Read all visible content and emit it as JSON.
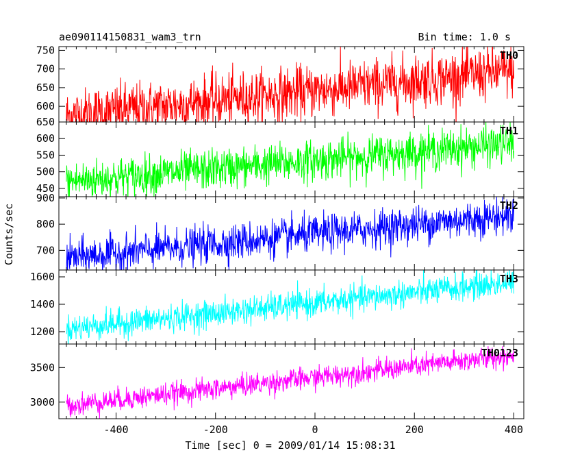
{
  "chart_data": {
    "type": "line",
    "title": "ae090114150831_wam3_trn",
    "bin_time_label": "Bin time: 1.0 s",
    "xlabel": "Time [sec] 0 = 2009/01/14 15:08:31",
    "ylabel": "Counts/sec",
    "xlim": [
      -515,
      420
    ],
    "x_ticks": [
      -400,
      -200,
      0,
      200,
      400
    ],
    "grid": false,
    "panels": [
      {
        "name": "TH0",
        "color": "#ff0000",
        "ylim": [
          558,
          760
        ],
        "y_ticks": [
          600,
          650,
          700,
          750
        ],
        "trend": {
          "x": [
            -500,
            400
          ],
          "y": [
            575,
            695
          ]
        },
        "noise": 35
      },
      {
        "name": "TH1",
        "color": "#00ff00",
        "ylim": [
          425,
          650
        ],
        "y_ticks": [
          450,
          500,
          550,
          600,
          650
        ],
        "trend": {
          "x": [
            -500,
            400
          ],
          "y": [
            470,
            585
          ]
        },
        "noise": 30
      },
      {
        "name": "TH2",
        "color": "#0000ff",
        "ylim": [
          625,
          905
        ],
        "y_ticks": [
          700,
          800,
          900
        ],
        "trend": {
          "x": [
            -500,
            400
          ],
          "y": [
            670,
            835
          ]
        },
        "noise": 35
      },
      {
        "name": "TH3",
        "color": "#00ffff",
        "ylim": [
          1110,
          1650
        ],
        "y_ticks": [
          1200,
          1400,
          1600
        ],
        "trend": {
          "x": [
            -500,
            400
          ],
          "y": [
            1220,
            1560
          ]
        },
        "noise": 50
      },
      {
        "name": "TH0123",
        "color": "#ff00ff",
        "ylim": [
          2760,
          3840
        ],
        "y_ticks": [
          3000,
          3500
        ],
        "trend": {
          "x": [
            -500,
            400
          ],
          "y": [
            2950,
            3680
          ]
        },
        "noise": 80
      }
    ]
  }
}
